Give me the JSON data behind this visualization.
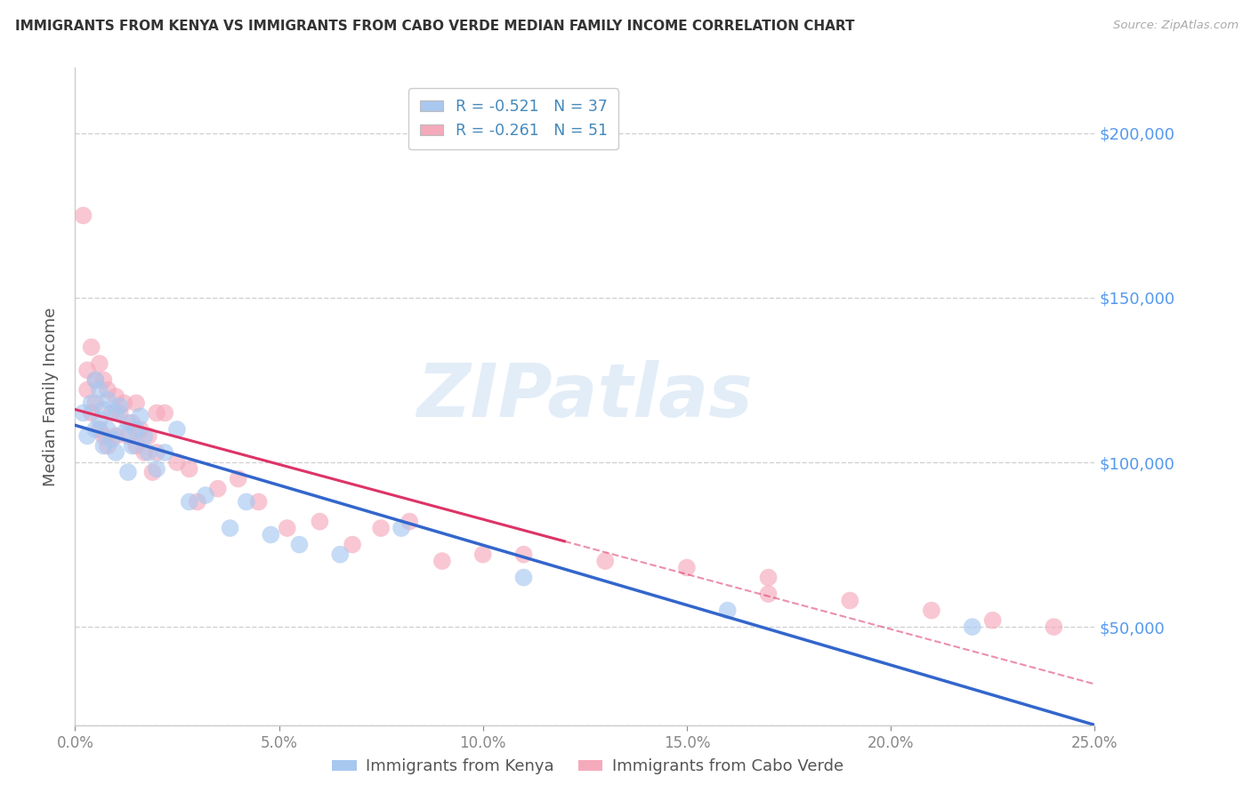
{
  "title": "IMMIGRANTS FROM KENYA VS IMMIGRANTS FROM CABO VERDE MEDIAN FAMILY INCOME CORRELATION CHART",
  "source": "Source: ZipAtlas.com",
  "ylabel": "Median Family Income",
  "xlim": [
    0.0,
    0.25
  ],
  "ylim": [
    20000,
    220000
  ],
  "yticks": [
    20000,
    50000,
    100000,
    150000,
    200000
  ],
  "watermark_text": "ZIPatlas",
  "watermark_style": "italic",
  "legend_entries": [
    {
      "label_r": "R = -0.521",
      "label_n": "N = 37",
      "color": "#a8c8f0"
    },
    {
      "label_r": "R = -0.261",
      "label_n": "N = 51",
      "color": "#f5aabc"
    }
  ],
  "series_kenya": {
    "color": "#a8c8f0",
    "line_color": "#3366cc",
    "x": [
      0.002,
      0.003,
      0.004,
      0.005,
      0.005,
      0.006,
      0.006,
      0.007,
      0.007,
      0.008,
      0.008,
      0.009,
      0.01,
      0.01,
      0.011,
      0.012,
      0.013,
      0.013,
      0.014,
      0.015,
      0.016,
      0.017,
      0.018,
      0.02,
      0.022,
      0.025,
      0.028,
      0.032,
      0.038,
      0.042,
      0.048,
      0.055,
      0.065,
      0.08,
      0.11,
      0.16,
      0.22
    ],
    "y": [
      115000,
      108000,
      118000,
      125000,
      110000,
      122000,
      113000,
      116000,
      105000,
      119000,
      110000,
      107000,
      115000,
      103000,
      117000,
      109000,
      112000,
      97000,
      105000,
      110000,
      114000,
      108000,
      103000,
      98000,
      103000,
      110000,
      88000,
      90000,
      80000,
      88000,
      78000,
      75000,
      72000,
      80000,
      65000,
      55000,
      50000
    ]
  },
  "series_caboverde": {
    "color": "#f5aabc",
    "line_color": "#dd3366",
    "x": [
      0.002,
      0.003,
      0.003,
      0.004,
      0.004,
      0.005,
      0.005,
      0.006,
      0.006,
      0.007,
      0.007,
      0.008,
      0.008,
      0.009,
      0.01,
      0.01,
      0.011,
      0.012,
      0.013,
      0.014,
      0.015,
      0.015,
      0.016,
      0.017,
      0.018,
      0.019,
      0.02,
      0.02,
      0.022,
      0.025,
      0.028,
      0.03,
      0.035,
      0.04,
      0.045,
      0.052,
      0.06,
      0.068,
      0.075,
      0.082,
      0.09,
      0.1,
      0.11,
      0.13,
      0.15,
      0.17,
      0.19,
      0.21,
      0.225,
      0.24,
      0.17
    ],
    "y": [
      175000,
      128000,
      122000,
      135000,
      115000,
      125000,
      118000,
      130000,
      110000,
      125000,
      108000,
      122000,
      105000,
      115000,
      120000,
      108000,
      115000,
      118000,
      108000,
      112000,
      105000,
      118000,
      110000,
      103000,
      108000,
      97000,
      115000,
      103000,
      115000,
      100000,
      98000,
      88000,
      92000,
      95000,
      88000,
      80000,
      82000,
      75000,
      80000,
      82000,
      70000,
      72000,
      72000,
      70000,
      68000,
      60000,
      58000,
      55000,
      52000,
      50000,
      65000
    ]
  },
  "background_color": "#ffffff",
  "grid_color": "#cccccc",
  "title_color": "#333333",
  "right_label_color": "#5599ee",
  "axis_label_color": "#888888"
}
